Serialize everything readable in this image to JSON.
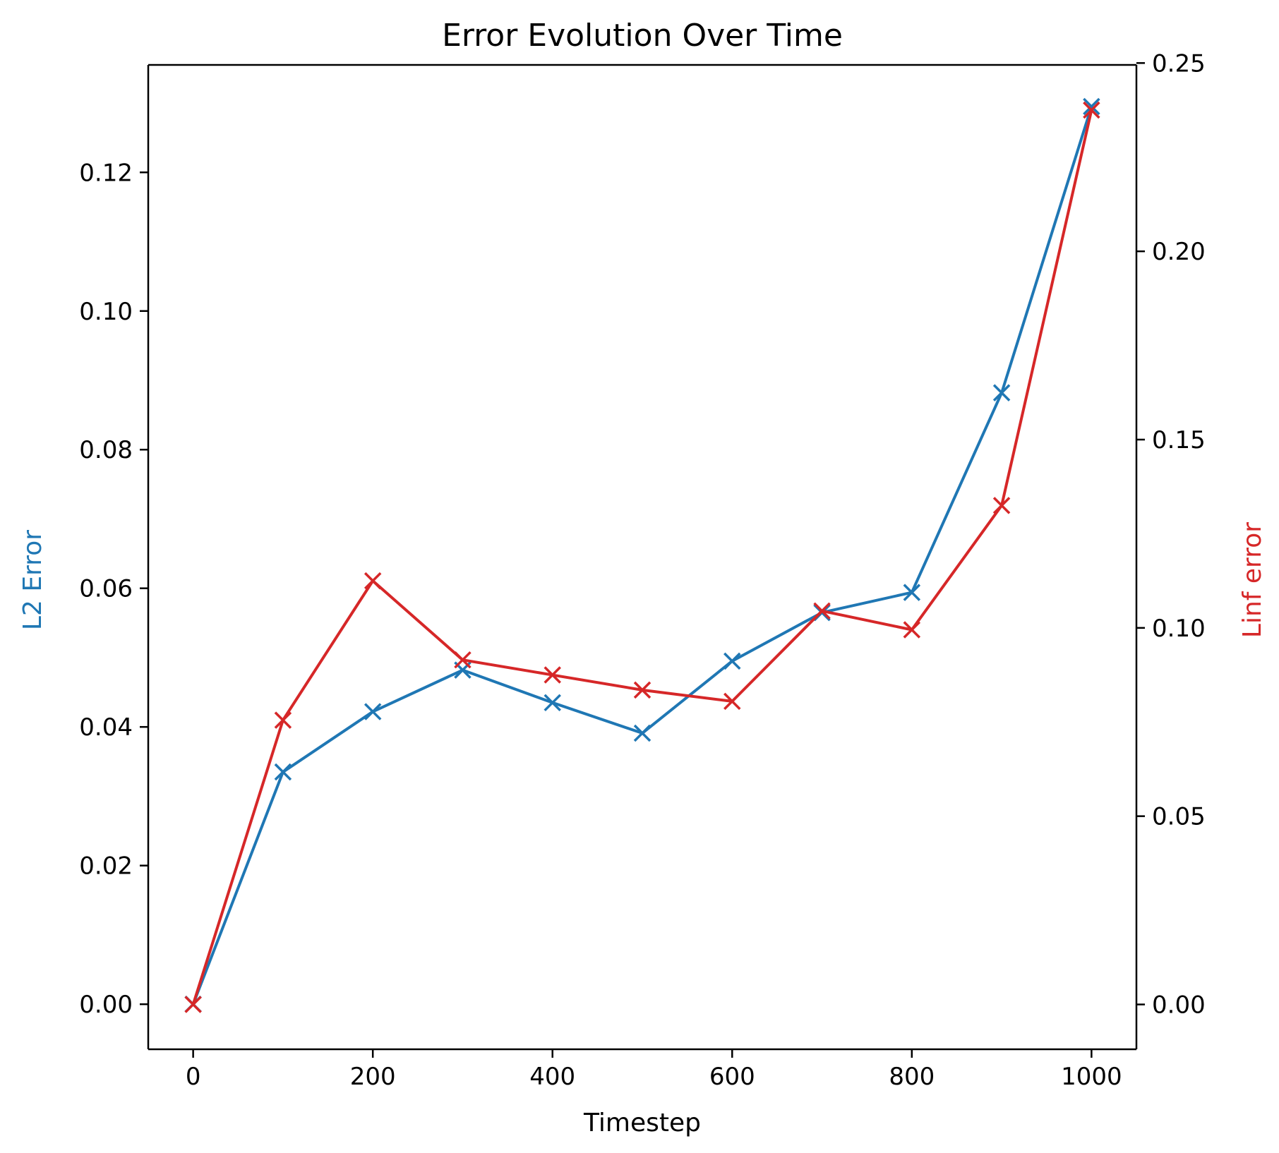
{
  "chart_data": {
    "type": "line",
    "title": "Error Evolution Over Time",
    "xlabel": "Timestep",
    "ylabel_left": "L2 Error",
    "ylabel_right": "Linf error",
    "x": [
      0,
      100,
      200,
      300,
      400,
      500,
      600,
      700,
      800,
      900,
      1000
    ],
    "x_ticks": [
      0,
      200,
      400,
      600,
      800,
      1000
    ],
    "x_tick_labels": [
      "0",
      "200",
      "400",
      "600",
      "800",
      "1000"
    ],
    "xlim": [
      -50,
      1050
    ],
    "y_left_ticks": [
      0.0,
      0.02,
      0.04,
      0.06,
      0.08,
      0.1,
      0.12
    ],
    "y_left_tick_labels": [
      "0.00",
      "0.02",
      "0.04",
      "0.06",
      "0.08",
      "0.10",
      "0.12"
    ],
    "ylim_left": [
      -0.0065,
      0.1355
    ],
    "y_right_ticks": [
      0.0,
      0.05,
      0.1,
      0.15,
      0.2,
      0.25
    ],
    "y_right_tick_labels": [
      "0.00",
      "0.05",
      "0.10",
      "0.15",
      "0.20",
      "0.25"
    ],
    "ylim_right": [
      -0.0119,
      0.2495
    ],
    "grid": false,
    "legend": "none",
    "series": [
      {
        "axis": "left",
        "color": "#1f77b4",
        "marker": "x",
        "values": [
          0.0,
          0.0335,
          0.0422,
          0.0482,
          0.0435,
          0.0391,
          0.0495,
          0.0565,
          0.0594,
          0.0882,
          0.1295
        ]
      },
      {
        "axis": "right",
        "color": "#d62728",
        "marker": "x",
        "values": [
          0.0,
          0.0755,
          0.1125,
          0.0915,
          0.0875,
          0.0835,
          0.0805,
          0.1045,
          0.0995,
          0.1325,
          0.2375
        ]
      }
    ]
  }
}
